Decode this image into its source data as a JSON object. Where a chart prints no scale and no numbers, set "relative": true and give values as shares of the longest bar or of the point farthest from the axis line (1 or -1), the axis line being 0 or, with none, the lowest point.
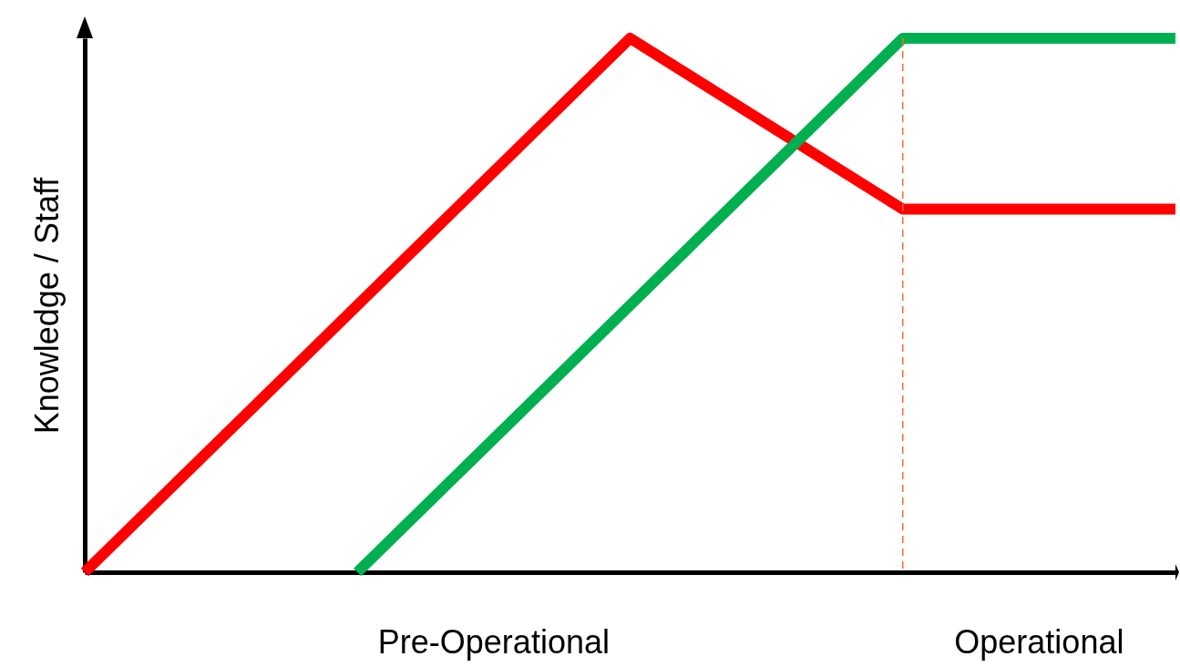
{
  "chart_data": {
    "type": "line",
    "relative": true,
    "ylabel": "Knowledge / Staff",
    "categories": [
      null,
      null,
      null,
      null,
      null
    ],
    "marker": "none",
    "line_style": "solid",
    "series": [
      {
        "color": "#ff0000",
        "values": [
          0,
          0.5,
          1,
          0.68,
          0.68
        ]
      },
      {
        "color": "#00b050",
        "values": [
          null,
          0,
          0.5,
          1,
          1
        ]
      }
    ],
    "annotations": [
      "Pre-Operational",
      "Operational"
    ]
  }
}
